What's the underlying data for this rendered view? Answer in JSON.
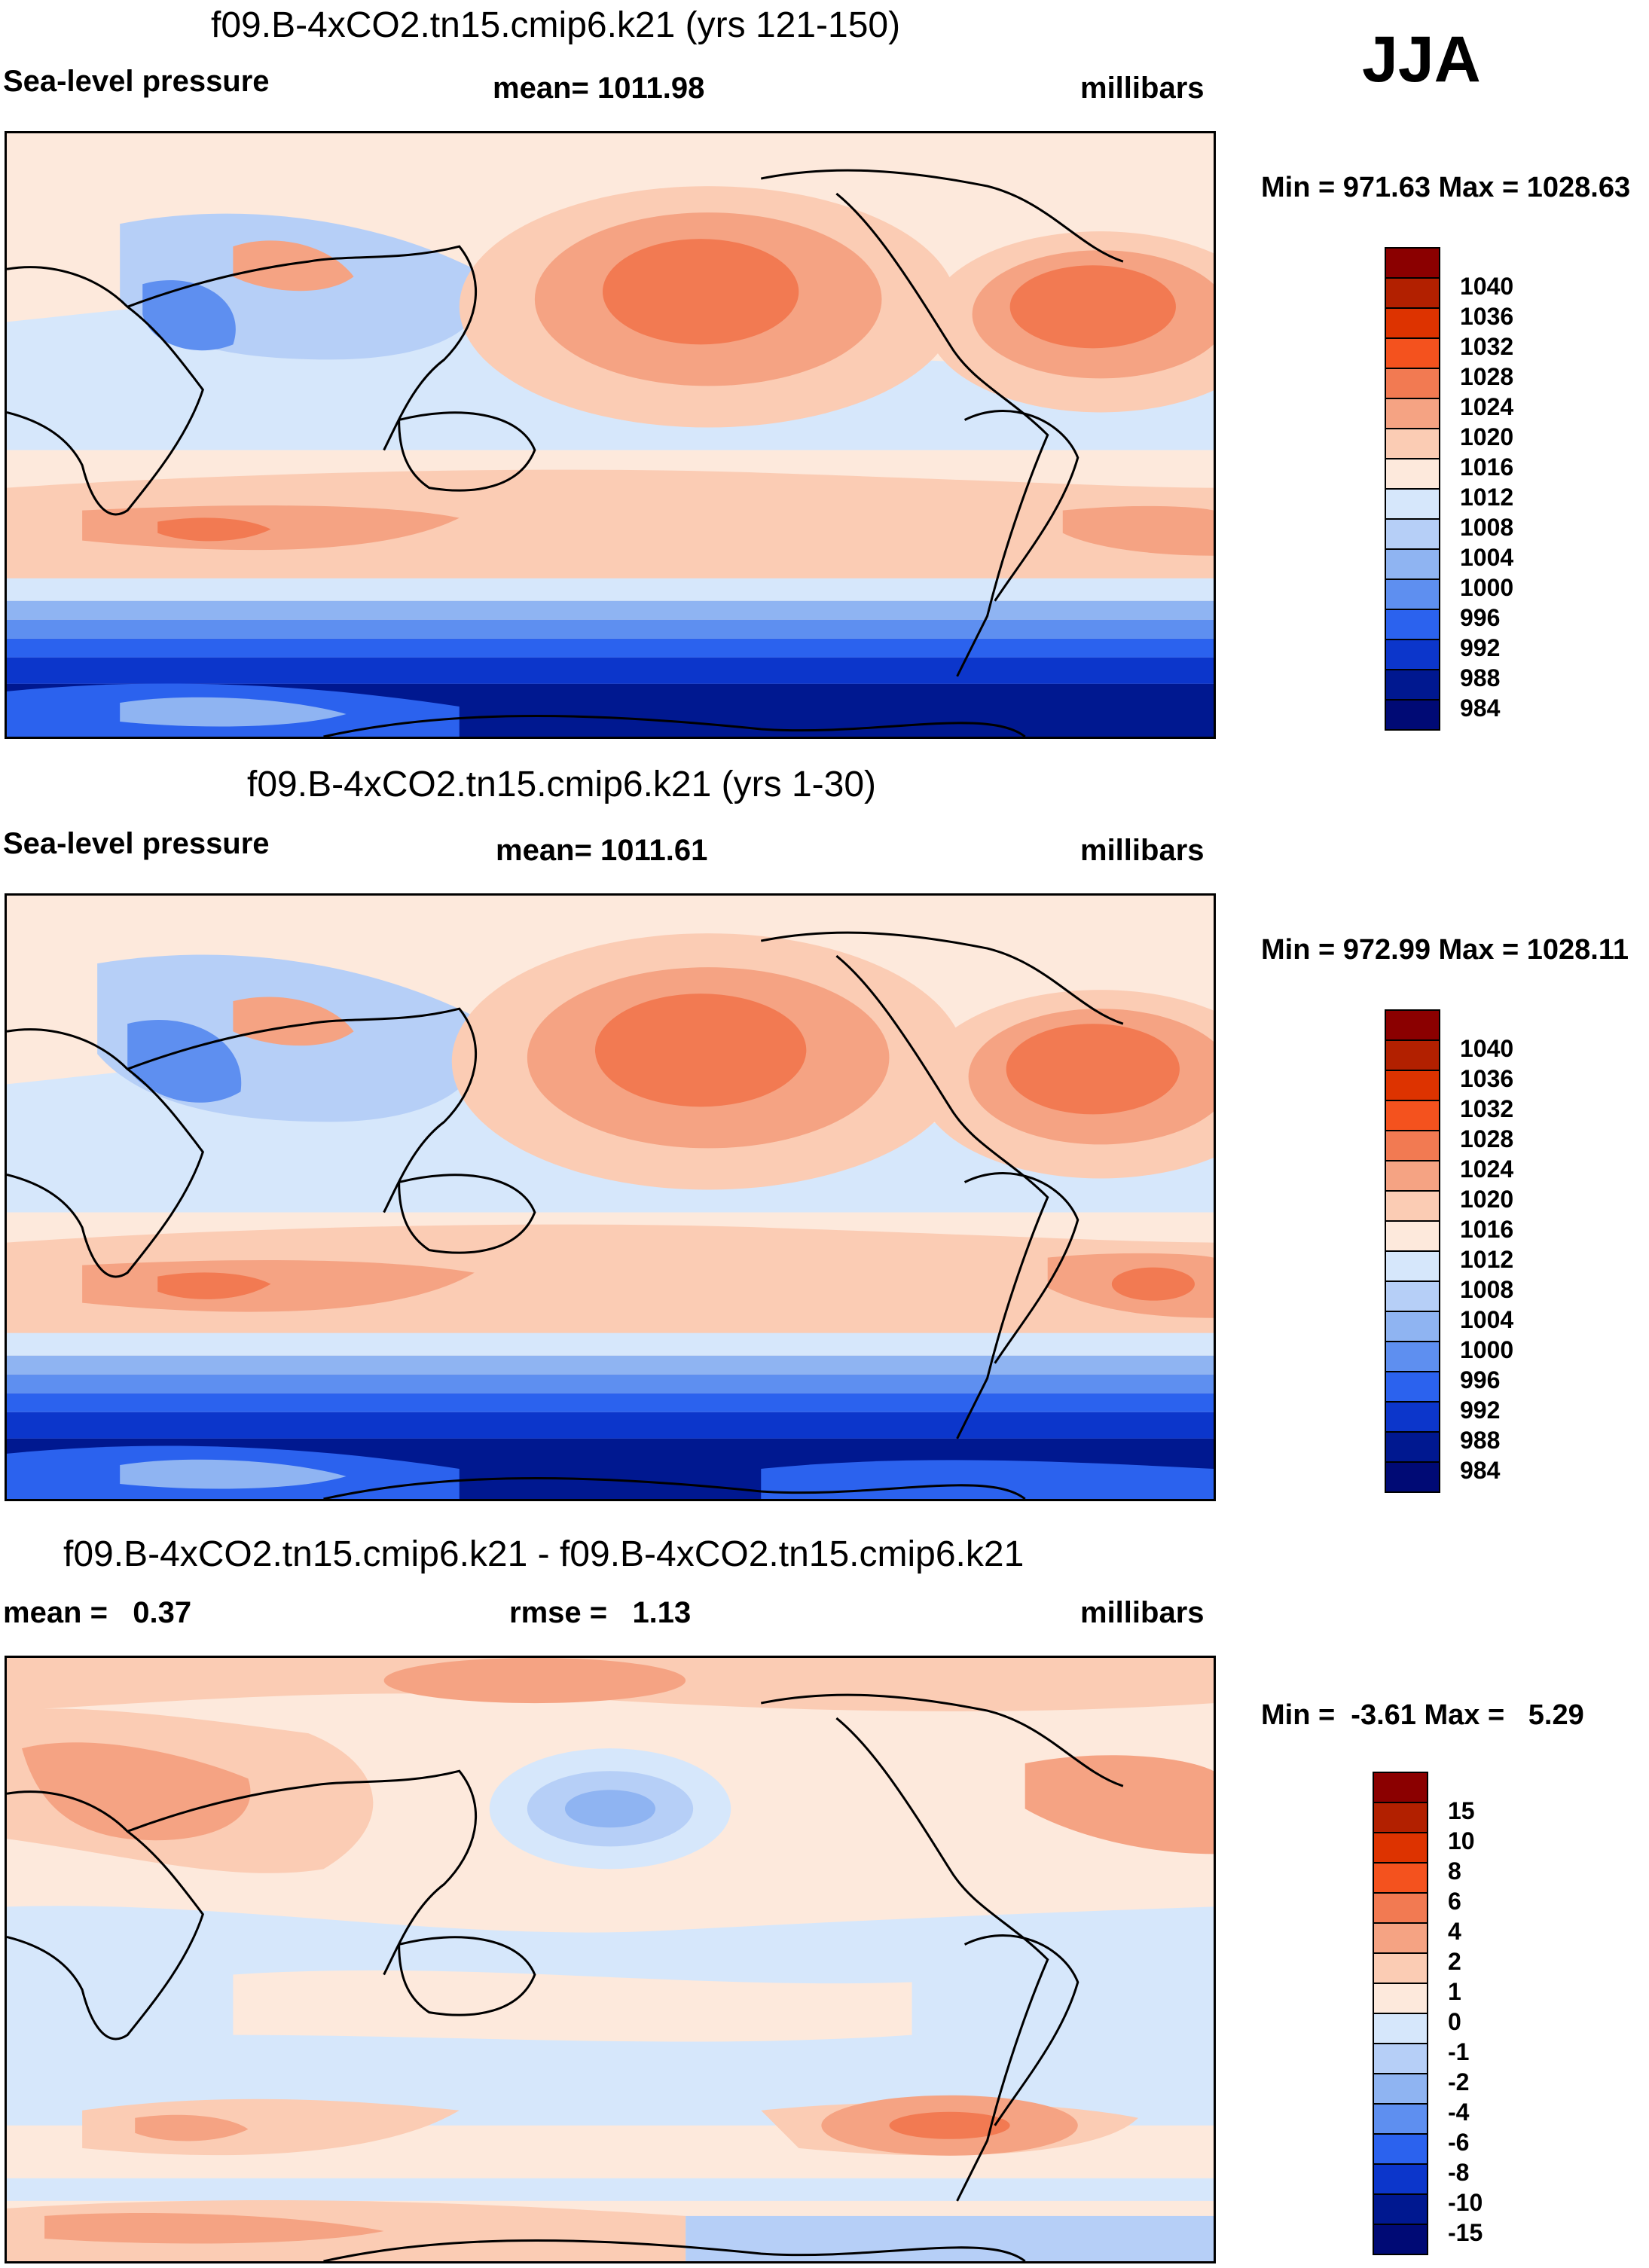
{
  "season": "JJA",
  "panels": [
    {
      "title": "f09.B-4xCO2.tn15.cmip6.k21 (yrs 121-150)",
      "left_label": "Sea-level pressure",
      "center_label": "mean= 1011.98",
      "right_label": "millibars",
      "minmax": "Min = 971.63 Max = 1028.63",
      "colorbar": {
        "levels": [
          "1040",
          "1036",
          "1032",
          "1028",
          "1024",
          "1020",
          "1016",
          "1012",
          "1008",
          "1004",
          "1000",
          "996",
          "992",
          "988",
          "984"
        ],
        "colors": [
          "#8b0000",
          "#b22000",
          "#dd3300",
          "#f4521e",
          "#f27a52",
          "#f5a383",
          "#fbccb4",
          "#fde9dc",
          "#d6e7fb",
          "#b6cff7",
          "#8fb4f2",
          "#5e8ff0",
          "#2b62ee",
          "#0c36cb",
          "#001890",
          "#000a75"
        ]
      },
      "fields": {
        "high_pressure": "#f27a52",
        "subtropical": "#f5a383",
        "mid": "#fbccb4",
        "near_mean": "#fde9dc",
        "low1": "#d6e7fb",
        "low2": "#b6cff7",
        "low3": "#8fb4f2",
        "low4": "#5e8ff0",
        "low5": "#2b62ee",
        "low6": "#0c36cb",
        "low7": "#001890"
      }
    },
    {
      "title": "f09.B-4xCO2.tn15.cmip6.k21 (yrs 1-30)",
      "left_label": "Sea-level pressure",
      "center_label": "mean= 1011.61",
      "right_label": "millibars",
      "minmax": "Min = 972.99 Max = 1028.11",
      "colorbar": {
        "levels": [
          "1040",
          "1036",
          "1032",
          "1028",
          "1024",
          "1020",
          "1016",
          "1012",
          "1008",
          "1004",
          "1000",
          "996",
          "992",
          "988",
          "984"
        ],
        "colors": [
          "#8b0000",
          "#b22000",
          "#dd3300",
          "#f4521e",
          "#f27a52",
          "#f5a383",
          "#fbccb4",
          "#fde9dc",
          "#d6e7fb",
          "#b6cff7",
          "#8fb4f2",
          "#5e8ff0",
          "#2b62ee",
          "#0c36cb",
          "#001890",
          "#000a75"
        ]
      }
    },
    {
      "title": "f09.B-4xCO2.tn15.cmip6.k21 - f09.B-4xCO2.tn15.cmip6.k21",
      "left_label": "mean =   0.37",
      "center_label": "rmse =   1.13",
      "right_label": "millibars",
      "minmax": "Min =  -3.61 Max =   5.29",
      "colorbar": {
        "levels": [
          "15",
          "10",
          "8",
          "6",
          "4",
          "2",
          "1",
          "0",
          "-1",
          "-2",
          "-4",
          "-6",
          "-8",
          "-10",
          "-15"
        ],
        "colors": [
          "#8b0000",
          "#b22000",
          "#dd3300",
          "#f4521e",
          "#f27a52",
          "#f5a383",
          "#fbccb4",
          "#fde9dc",
          "#d6e7fb",
          "#b6cff7",
          "#8fb4f2",
          "#5e8ff0",
          "#2b62ee",
          "#0c36cb",
          "#001890",
          "#000a75"
        ]
      }
    }
  ]
}
